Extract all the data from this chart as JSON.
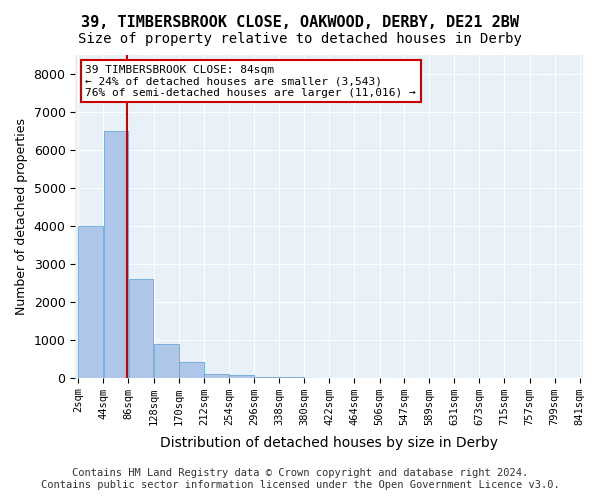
{
  "title": "39, TIMBERSBROOK CLOSE, OAKWOOD, DERBY, DE21 2BW",
  "subtitle": "Size of property relative to detached houses in Derby",
  "xlabel": "Distribution of detached houses by size in Derby",
  "ylabel": "Number of detached properties",
  "annotation_line1": "39 TIMBERSBROOK CLOSE: 84sqm",
  "annotation_line2": "← 24% of detached houses are smaller (3,543)",
  "annotation_line3": "76% of semi-detached houses are larger (11,016) →",
  "property_size_sqm": 84,
  "bin_edges": [
    2,
    44,
    86,
    128,
    170,
    212,
    254,
    296,
    338,
    380,
    422,
    464,
    506,
    547,
    589,
    631,
    673,
    715,
    757,
    799,
    841
  ],
  "bar_heights": [
    4000,
    6500,
    2600,
    900,
    400,
    100,
    60,
    15,
    5,
    2,
    1,
    0,
    0,
    0,
    0,
    0,
    0,
    0,
    0,
    0
  ],
  "bar_color": "#aec6e8",
  "bar_edge_color": "#5a9fd4",
  "vline_color": "#cc0000",
  "vline_x": 84,
  "annotation_box_color": "#cc0000",
  "background_color": "#e8f0f8",
  "plot_bg_color": "#e8f0f8",
  "ylim": [
    0,
    8500
  ],
  "yticks": [
    0,
    1000,
    2000,
    3000,
    4000,
    5000,
    6000,
    7000,
    8000
  ],
  "footer_line1": "Contains HM Land Registry data © Crown copyright and database right 2024.",
  "footer_line2": "Contains public sector information licensed under the Open Government Licence v3.0.",
  "title_fontsize": 11,
  "subtitle_fontsize": 10,
  "tick_label_fontsize": 7.5,
  "ylabel_fontsize": 9,
  "xlabel_fontsize": 10,
  "footer_fontsize": 7.5
}
